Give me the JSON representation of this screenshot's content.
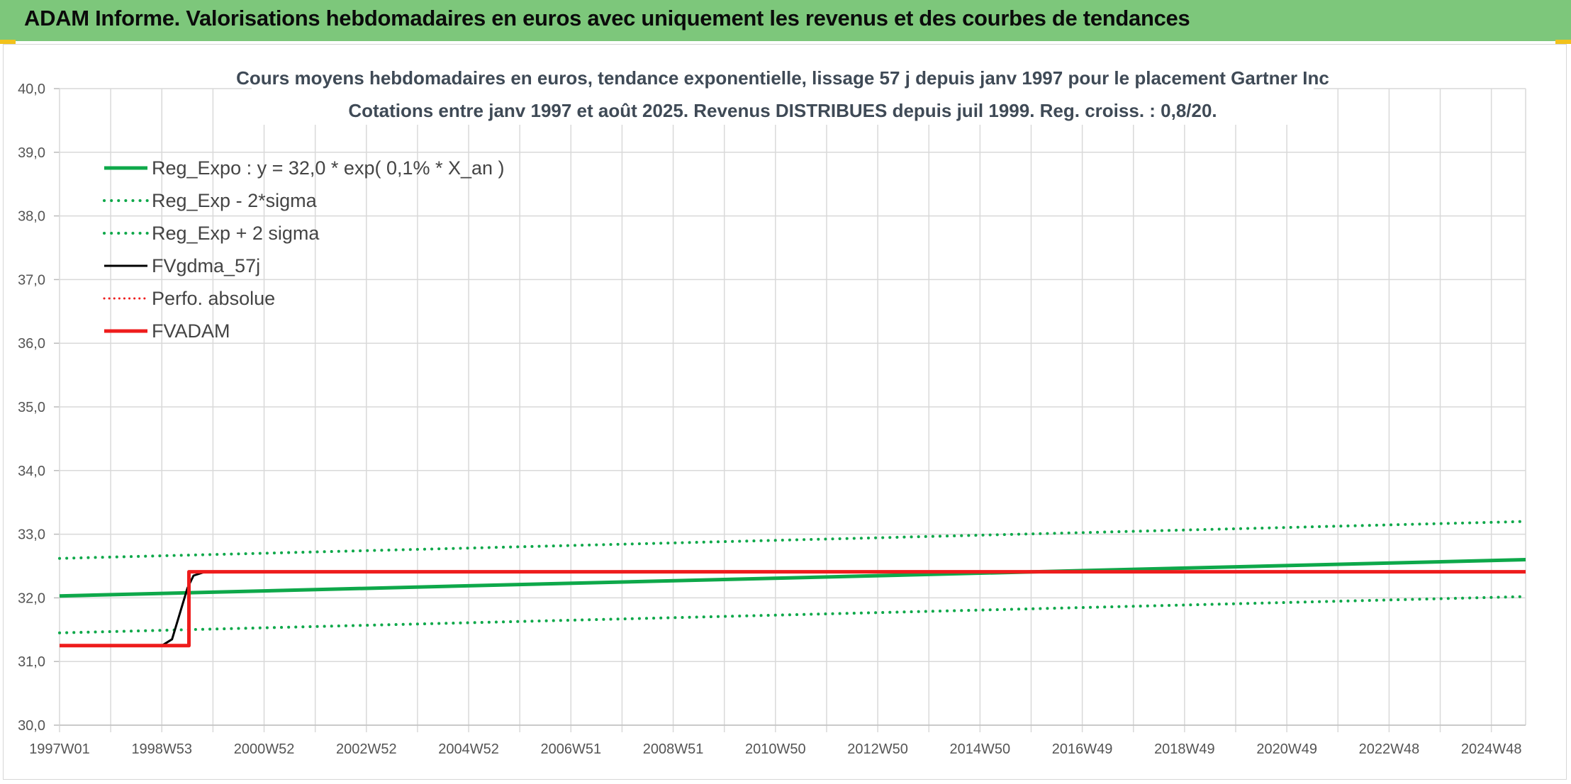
{
  "header": {
    "title": "ADAM Informe. Valorisations hebdomadaires en euros avec uniquement les revenus et des courbes de tendances"
  },
  "colors": {
    "header_bg": "#7dc77b",
    "green": "#0ea84a",
    "black": "#000000",
    "red": "#ee1c1c",
    "grid": "#d9d9d9"
  },
  "chart_data": {
    "type": "line",
    "title": "Cours moyens hebdomadaires en euros, tendance exponentielle, lissage 57 j depuis janv 1997 pour le placement Gartner Inc",
    "subtitle": "Cotations entre janv 1997 et août 2025. Revenus DISTRIBUES depuis juil 1999. Reg. croiss. : 0,8/20.",
    "ylim": [
      30,
      40
    ],
    "y_ticks": [
      "30,0",
      "31,0",
      "32,0",
      "33,0",
      "34,0",
      "35,0",
      "36,0",
      "37,0",
      "38,0",
      "39,0",
      "40,0"
    ],
    "xlim": [
      1997.0,
      2025.67
    ],
    "x_ticks": [
      {
        "x": 1997.0,
        "label": "1997W01"
      },
      {
        "x": 1999.0,
        "label": "1998W53"
      },
      {
        "x": 2001.0,
        "label": "2000W52"
      },
      {
        "x": 2003.0,
        "label": "2002W52"
      },
      {
        "x": 2005.0,
        "label": "2004W52"
      },
      {
        "x": 2007.0,
        "label": "2006W51"
      },
      {
        "x": 2009.0,
        "label": "2008W51"
      },
      {
        "x": 2011.0,
        "label": "2010W50"
      },
      {
        "x": 2013.0,
        "label": "2012W50"
      },
      {
        "x": 2015.0,
        "label": "2014W50"
      },
      {
        "x": 2017.0,
        "label": "2016W49"
      },
      {
        "x": 2019.0,
        "label": "2018W49"
      },
      {
        "x": 2021.0,
        "label": "2020W49"
      },
      {
        "x": 2023.0,
        "label": "2022W48"
      },
      {
        "x": 2025.0,
        "label": "2024W48"
      }
    ],
    "legend": {
      "placement": "top-left"
    },
    "series": [
      {
        "name": "Reg_Expo : y = 32,0 * exp( 0,1% *  X_an )",
        "color": "#0ea84a",
        "style": "solid",
        "width": 5,
        "x": [
          1997.0,
          2025.67
        ],
        "y": [
          32.03,
          32.6
        ]
      },
      {
        "name": "Reg_Exp - 2*sigma",
        "color": "#0ea84a",
        "style": "dotted",
        "width": 4,
        "x": [
          1997.0,
          2025.67
        ],
        "y": [
          31.45,
          32.02
        ]
      },
      {
        "name": "Reg_Exp + 2 sigma",
        "color": "#0ea84a",
        "style": "dotted",
        "width": 4,
        "x": [
          1997.0,
          2025.67
        ],
        "y": [
          32.62,
          33.2
        ]
      },
      {
        "name": "FVgdma_57j",
        "color": "#000000",
        "style": "solid",
        "width": 3,
        "x": [
          1997.0,
          1999.0,
          1999.2,
          1999.35,
          1999.5,
          1999.62,
          1999.85,
          2025.67
        ],
        "y": [
          31.25,
          31.25,
          31.35,
          31.75,
          32.15,
          32.35,
          32.41,
          32.41
        ]
      },
      {
        "name": "Perfo. absolue",
        "color": "#ee1c1c",
        "style": "dotted",
        "width": 3,
        "x": [],
        "y": []
      },
      {
        "name": "FVADAM",
        "color": "#ee1c1c",
        "style": "solid",
        "width": 5,
        "x": [
          1997.0,
          1999.53,
          1999.53,
          2025.67
        ],
        "y": [
          31.25,
          31.25,
          32.41,
          32.41
        ]
      }
    ]
  }
}
